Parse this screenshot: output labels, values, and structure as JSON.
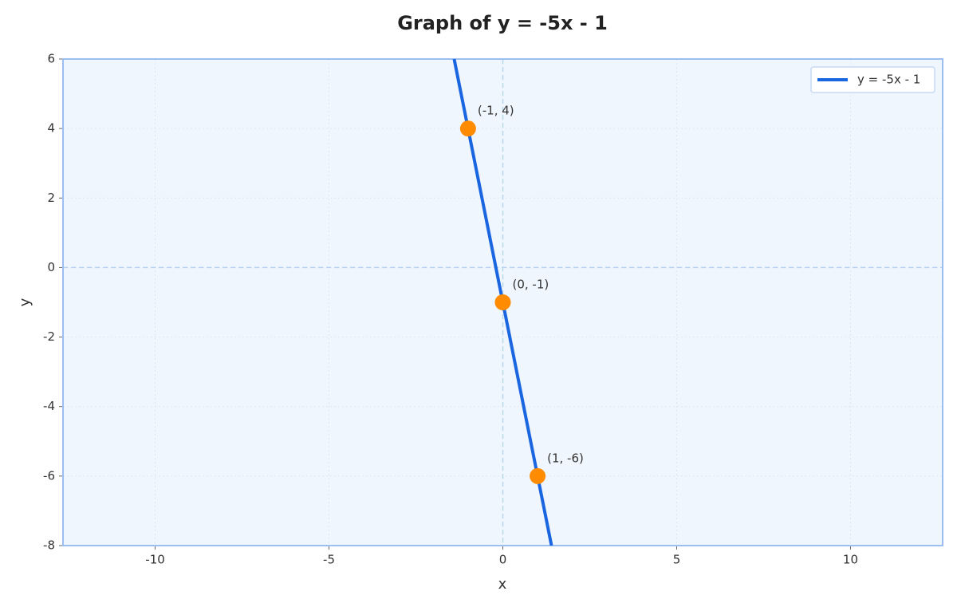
{
  "chart_data": {
    "type": "line",
    "title": "Graph of y = -5x - 1",
    "x_label": "x",
    "y_label": "y",
    "xlim": [
      -12.65,
      12.65
    ],
    "ylim": [
      -8,
      6
    ],
    "xticks": [
      -10,
      -5,
      0,
      5,
      10
    ],
    "yticks": [
      -8,
      -6,
      -4,
      -2,
      0,
      2,
      4,
      6
    ],
    "grid": true,
    "zero_lines": true,
    "legend": "upper-right",
    "series": [
      {
        "name": "y = -5x - 1",
        "color": "#1a66e0",
        "x": [
          -1.4,
          1.4
        ],
        "values": [
          6,
          -8
        ]
      }
    ],
    "points": {
      "color": "#ff8c00",
      "x": [
        -1,
        0,
        1
      ],
      "values": [
        4,
        -1,
        -6
      ],
      "labels": [
        "(-1, 4)",
        "(0, -1)",
        "(1, -6)"
      ]
    }
  }
}
